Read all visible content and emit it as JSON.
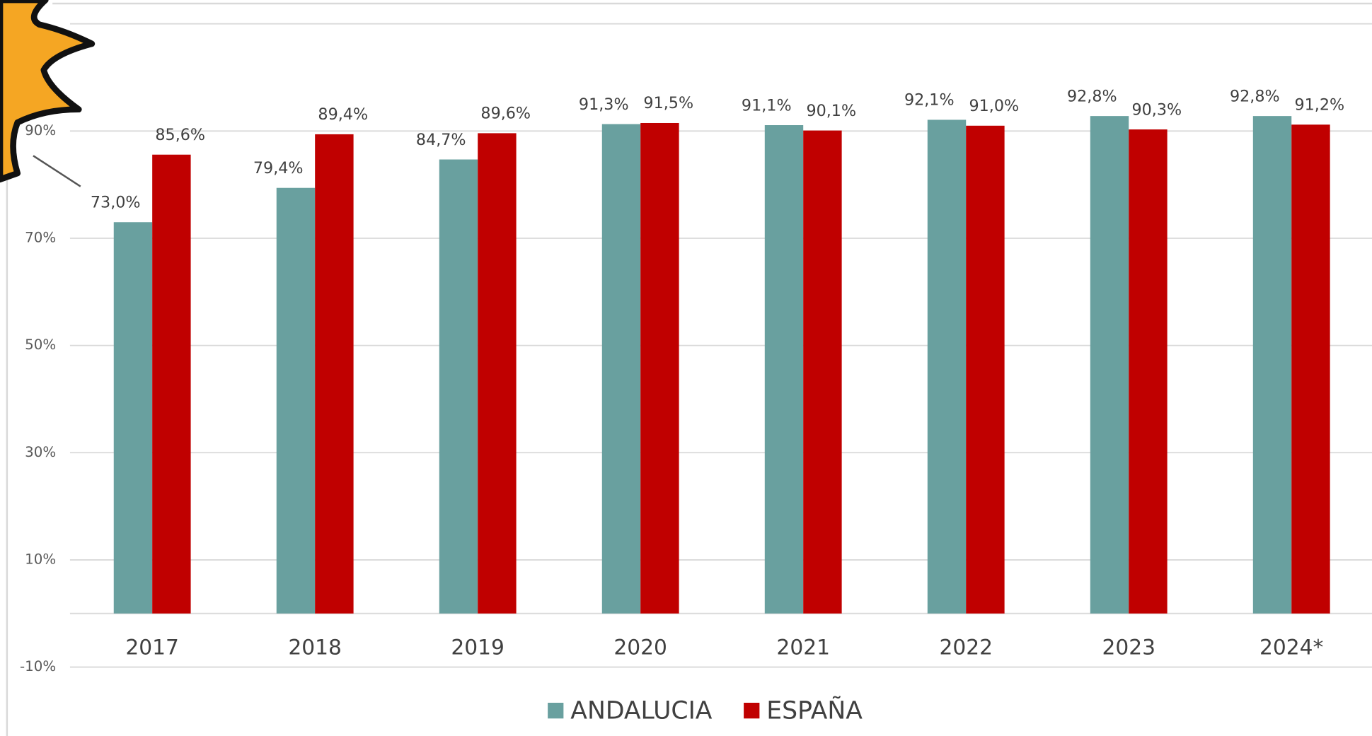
{
  "chart_data": {
    "type": "bar",
    "categories": [
      "2017",
      "2018",
      "2019",
      "2020",
      "2021",
      "2022",
      "2023",
      "2024*"
    ],
    "series": [
      {
        "name": "ANDALUCIA",
        "color": "#69a09f",
        "values": [
          73.0,
          79.4,
          84.7,
          91.3,
          91.1,
          92.1,
          92.8,
          92.8
        ],
        "value_labels": [
          "73,0%",
          "79,4%",
          "84,7%",
          "91,3%",
          "91,1%",
          "92,1%",
          "92,8%",
          "92,8%"
        ]
      },
      {
        "name": "ESPAÑA",
        "color": "#c00000",
        "values": [
          85.6,
          89.4,
          89.6,
          91.5,
          90.1,
          91.0,
          90.3,
          91.2
        ],
        "value_labels": [
          "85,6%",
          "89,4%",
          "89,6%",
          "91,5%",
          "90,1%",
          "91,0%",
          "90,3%",
          "91,2%"
        ]
      }
    ],
    "ylim": [
      -10,
      110
    ],
    "yticks": [
      {
        "value": -10,
        "label": "-10%"
      },
      {
        "value": 10,
        "label": "10%"
      },
      {
        "value": 30,
        "label": "30%"
      },
      {
        "value": 50,
        "label": "50%"
      },
      {
        "value": 70,
        "label": "70%"
      },
      {
        "value": 90,
        "label": "90%"
      }
    ],
    "grid": true,
    "legend": "bottom"
  }
}
